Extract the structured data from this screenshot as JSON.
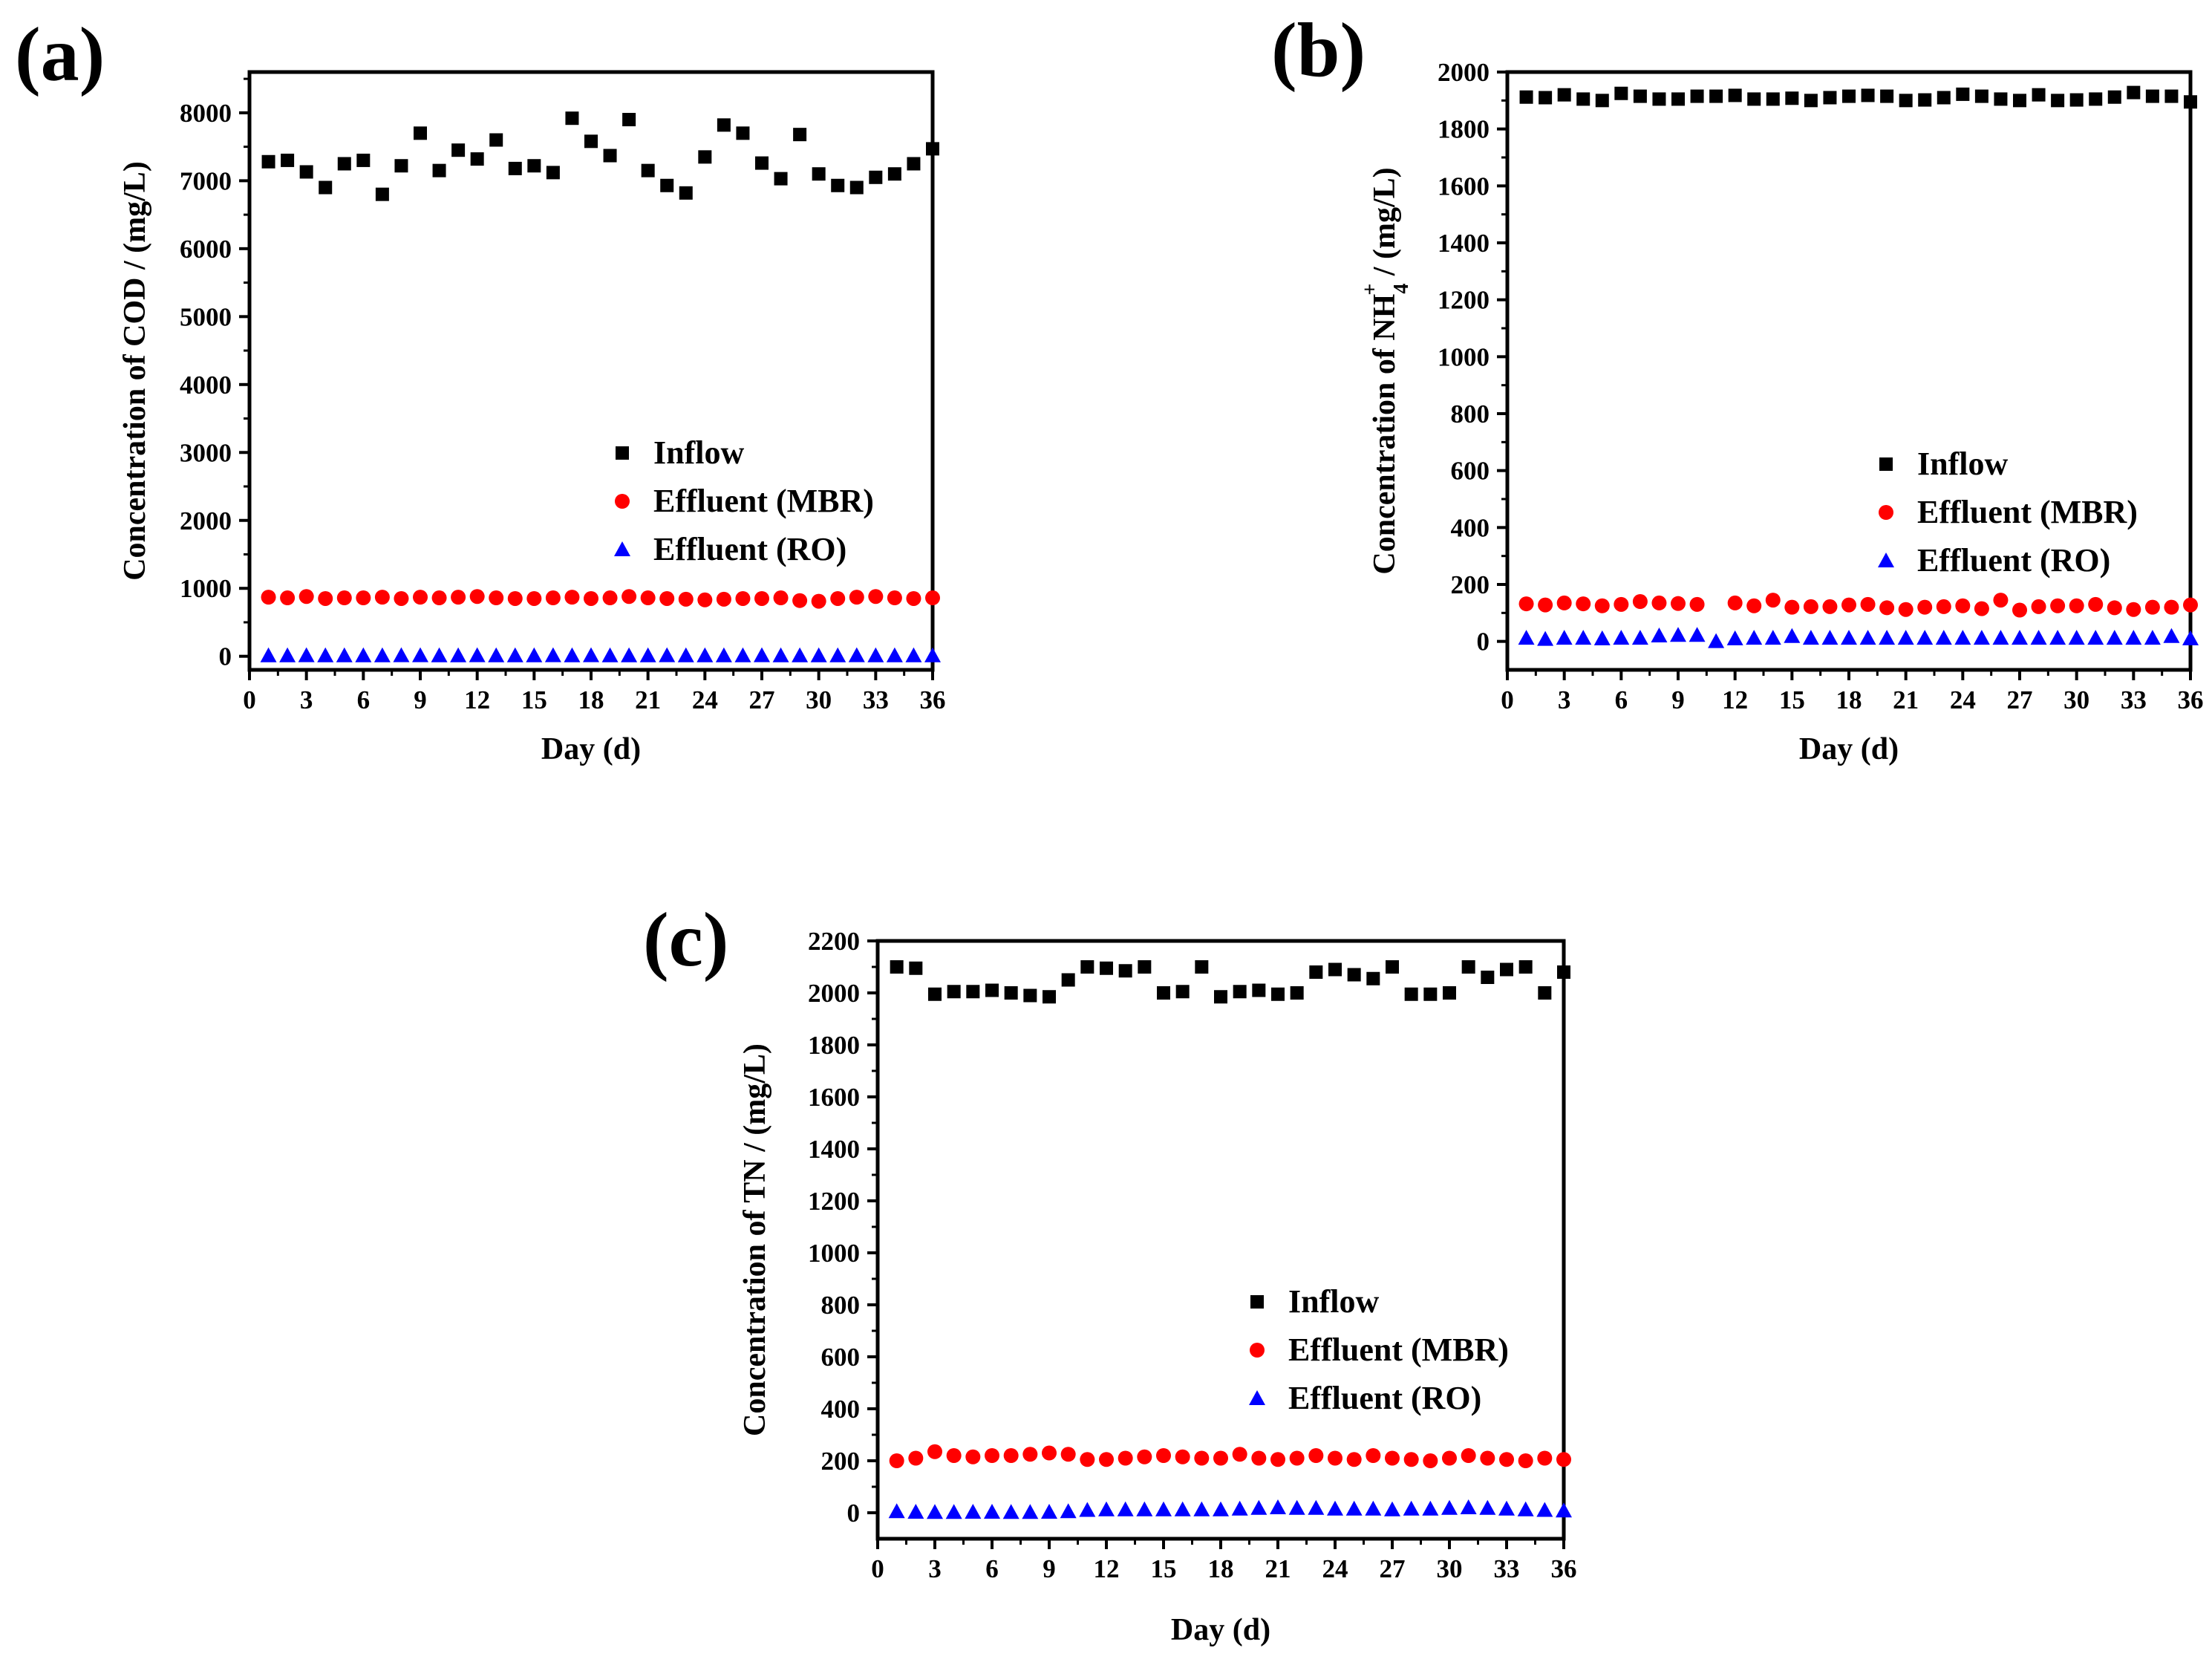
{
  "colors": {
    "inflow": "#000000",
    "mbr": "#ff0000",
    "ro": "#0000ff",
    "axis": "#000000"
  },
  "chart_data": [
    {
      "panel": "(a)",
      "type": "scatter",
      "xlabel": "Day (d)",
      "ylabel": "Concentration of COD / (mg/L)",
      "xlim": [
        0,
        36
      ],
      "ylim": [
        -200,
        8600
      ],
      "xticks": [
        0,
        3,
        6,
        9,
        12,
        15,
        18,
        21,
        24,
        27,
        30,
        33,
        36
      ],
      "yticks": [
        0,
        1000,
        2000,
        3000,
        4000,
        5000,
        6000,
        7000,
        8000
      ],
      "legend_position": "center-right",
      "x": [
        1,
        2,
        3,
        4,
        5,
        6,
        7,
        8,
        9,
        10,
        11,
        12,
        13,
        14,
        15,
        16,
        17,
        18,
        19,
        20,
        21,
        22,
        23,
        24,
        25,
        26,
        27,
        28,
        29,
        30,
        31,
        32,
        33,
        34,
        35,
        36
      ],
      "series": [
        {
          "name": "Inflow",
          "marker": "square",
          "color": "#000000",
          "values": [
            7280,
            7300,
            7130,
            6900,
            7250,
            7300,
            6800,
            7220,
            7700,
            7150,
            7450,
            7320,
            7600,
            7180,
            7220,
            7120,
            7920,
            7580,
            7370,
            7900,
            7150,
            6930,
            6820,
            7350,
            7820,
            7700,
            7260,
            7030,
            7680,
            7100,
            6930,
            6900,
            7050,
            7100,
            7250,
            7470
          ]
        },
        {
          "name": "Effluent (MBR)",
          "marker": "circle",
          "color": "#ff0000",
          "values": [
            870,
            860,
            880,
            850,
            860,
            860,
            870,
            850,
            870,
            860,
            870,
            880,
            860,
            850,
            850,
            860,
            870,
            850,
            860,
            880,
            860,
            850,
            840,
            830,
            840,
            850,
            850,
            860,
            820,
            810,
            850,
            870,
            880,
            860,
            850,
            860
          ]
        },
        {
          "name": "Effluent (RO)",
          "marker": "triangle",
          "color": "#0000ff",
          "values": [
            10,
            10,
            12,
            10,
            10,
            11,
            10,
            12,
            12,
            11,
            10,
            12,
            10,
            11,
            10,
            12,
            10,
            12,
            10,
            11,
            10,
            12,
            10,
            11,
            10,
            10,
            12,
            10,
            11,
            10,
            10,
            12,
            10,
            11,
            10,
            10
          ]
        }
      ]
    },
    {
      "panel": "(b)",
      "type": "scatter",
      "xlabel": "Day (d)",
      "ylabel": "Concentration of NH4+ / (mg/L)",
      "ylabel_parts": [
        "Concentration of NH",
        "4",
        "+",
        " / (mg/L)"
      ],
      "xlim": [
        0,
        36
      ],
      "ylim": [
        -100,
        2000
      ],
      "xticks": [
        0,
        3,
        6,
        9,
        12,
        15,
        18,
        21,
        24,
        27,
        30,
        33,
        36
      ],
      "yticks": [
        0,
        200,
        400,
        600,
        800,
        1000,
        1200,
        1400,
        1600,
        1800,
        2000
      ],
      "legend_position": "center-right",
      "x": [
        1,
        2,
        3,
        4,
        5,
        6,
        7,
        8,
        9,
        10,
        11,
        12,
        13,
        14,
        15,
        16,
        17,
        18,
        19,
        20,
        21,
        22,
        23,
        24,
        25,
        26,
        27,
        28,
        29,
        30,
        31,
        32,
        33,
        34,
        35,
        36
      ],
      "series": [
        {
          "name": "Inflow",
          "marker": "square",
          "color": "#000000",
          "values": [
            1912,
            1910,
            1920,
            1905,
            1900,
            1925,
            1915,
            1905,
            1905,
            1915,
            1915,
            1918,
            1905,
            1905,
            1908,
            1900,
            1910,
            1915,
            1918,
            1915,
            1900,
            1902,
            1910,
            1922,
            1915,
            1905,
            1900,
            1920,
            1900,
            1902,
            1905,
            1912,
            1928,
            1915,
            1915,
            1895
          ]
        },
        {
          "name": "Effluent (MBR)",
          "marker": "circle",
          "color": "#ff0000",
          "values": [
            132,
            128,
            135,
            132,
            125,
            130,
            140,
            135,
            133,
            130,
            null,
            135,
            125,
            145,
            120,
            122,
            122,
            128,
            130,
            118,
            112,
            120,
            122,
            125,
            115,
            145,
            110,
            122,
            125,
            125,
            130,
            118,
            112,
            120,
            120,
            128
          ]
        },
        {
          "name": "Effluent (RO)",
          "marker": "triangle",
          "color": "#0000ff",
          "values": [
            12,
            8,
            12,
            12,
            10,
            12,
            12,
            20,
            22,
            22,
            0,
            10,
            12,
            12,
            18,
            12,
            12,
            12,
            12,
            12,
            12,
            12,
            12,
            12,
            12,
            12,
            12,
            12,
            12,
            12,
            12,
            12,
            12,
            12,
            18,
            10
          ]
        }
      ]
    },
    {
      "panel": "(c)",
      "type": "scatter",
      "xlabel": "Day (d)",
      "ylabel": "Concentration of TN / (mg/L)",
      "xlim": [
        0,
        36
      ],
      "ylim": [
        -100,
        2200
      ],
      "xticks": [
        0,
        3,
        6,
        9,
        12,
        15,
        18,
        21,
        24,
        27,
        30,
        33,
        36
      ],
      "yticks": [
        0,
        200,
        400,
        600,
        800,
        1000,
        1200,
        1400,
        1600,
        1800,
        2000,
        2200
      ],
      "legend_position": "center-right",
      "x": [
        1,
        2,
        3,
        4,
        5,
        6,
        7,
        8,
        9,
        10,
        11,
        12,
        13,
        14,
        15,
        16,
        17,
        18,
        19,
        20,
        21,
        22,
        23,
        24,
        25,
        26,
        27,
        28,
        29,
        30,
        31,
        32,
        33,
        34,
        35,
        36
      ],
      "series": [
        {
          "name": "Inflow",
          "marker": "square",
          "color": "#000000",
          "values": [
            2100,
            2095,
            1995,
            2005,
            2005,
            2010,
            2000,
            1990,
            1985,
            2050,
            2100,
            2095,
            2085,
            2100,
            2000,
            2005,
            2100,
            1985,
            2005,
            2010,
            1995,
            2000,
            2080,
            2090,
            2070,
            2055,
            2100,
            1995,
            1995,
            2000,
            2100,
            2060,
            2090,
            2100,
            2000,
            2080
          ]
        },
        {
          "name": "Effluent (MBR)",
          "marker": "circle",
          "color": "#ff0000",
          "values": [
            200,
            210,
            235,
            220,
            215,
            220,
            220,
            225,
            230,
            225,
            205,
            205,
            210,
            215,
            220,
            215,
            210,
            210,
            225,
            210,
            205,
            210,
            220,
            210,
            205,
            220,
            210,
            205,
            200,
            210,
            220,
            210,
            205,
            200,
            210,
            205
          ]
        },
        {
          "name": "Effluent (RO)",
          "marker": "triangle",
          "color": "#0000ff",
          "values": [
            5,
            3,
            2,
            2,
            3,
            3,
            2,
            2,
            3,
            5,
            10,
            12,
            12,
            12,
            12,
            12,
            12,
            12,
            15,
            18,
            20,
            18,
            18,
            15,
            15,
            15,
            12,
            15,
            15,
            18,
            20,
            18,
            15,
            12,
            10,
            8
          ]
        }
      ]
    }
  ]
}
